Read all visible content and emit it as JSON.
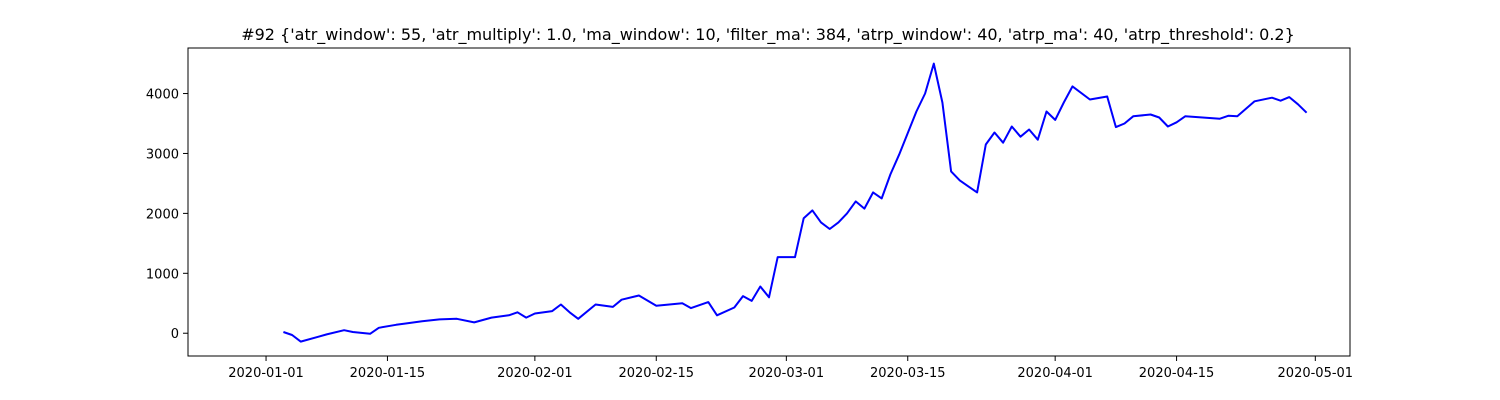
{
  "chart_data": {
    "type": "line",
    "title": "#92 {'atr_window': 55, 'atr_multiply': 1.0, 'ma_window': 10, 'filter_ma': 384, 'atrp_window': 40, 'atrp_ma': 40, 'atrp_threshold': 0.2}",
    "xlabel": "",
    "ylabel": "",
    "xlim": [
      "2019-12-23",
      "2020-05-05"
    ],
    "ylim": [
      -380,
      4760
    ],
    "grid": false,
    "x_ticks": [
      "2020-01-01",
      "2020-01-15",
      "2020-02-01",
      "2020-02-15",
      "2020-03-01",
      "2020-03-15",
      "2020-04-01",
      "2020-04-15",
      "2020-05-01"
    ],
    "y_ticks": [
      0,
      1000,
      2000,
      3000,
      4000
    ],
    "series": [
      {
        "color": "#0000ff",
        "x": [
          "2020-01-03",
          "2020-01-04",
          "2020-01-05",
          "2020-01-07",
          "2020-01-08",
          "2020-01-10",
          "2020-01-11",
          "2020-01-13",
          "2020-01-14",
          "2020-01-16",
          "2020-01-17",
          "2020-01-19",
          "2020-01-21",
          "2020-01-23",
          "2020-01-25",
          "2020-01-27",
          "2020-01-29",
          "2020-01-30",
          "2020-01-31",
          "2020-02-01",
          "2020-02-03",
          "2020-02-04",
          "2020-02-05",
          "2020-02-06",
          "2020-02-08",
          "2020-02-10",
          "2020-02-11",
          "2020-02-13",
          "2020-02-15",
          "2020-02-18",
          "2020-02-19",
          "2020-02-21",
          "2020-02-22",
          "2020-02-24",
          "2020-02-25",
          "2020-02-26",
          "2020-02-27",
          "2020-02-28",
          "2020-02-29",
          "2020-03-01",
          "2020-03-02",
          "2020-03-03",
          "2020-03-04",
          "2020-03-05",
          "2020-03-06",
          "2020-03-07",
          "2020-03-08",
          "2020-03-09",
          "2020-03-10",
          "2020-03-11",
          "2020-03-12",
          "2020-03-13",
          "2020-03-14",
          "2020-03-16",
          "2020-03-17",
          "2020-03-18",
          "2020-03-19",
          "2020-03-20",
          "2020-03-21",
          "2020-03-22",
          "2020-03-23",
          "2020-03-24",
          "2020-03-25",
          "2020-03-26",
          "2020-03-27",
          "2020-03-28",
          "2020-03-29",
          "2020-03-30",
          "2020-03-31",
          "2020-04-01",
          "2020-04-02",
          "2020-04-03",
          "2020-04-05",
          "2020-04-07",
          "2020-04-08",
          "2020-04-09",
          "2020-04-10",
          "2020-04-12",
          "2020-04-13",
          "2020-04-14",
          "2020-04-15",
          "2020-04-16",
          "2020-04-18",
          "2020-04-20",
          "2020-04-21",
          "2020-04-22",
          "2020-04-24",
          "2020-04-26",
          "2020-04-27",
          "2020-04-28",
          "2020-04-29",
          "2020-04-30"
        ],
        "y": [
          20,
          -30,
          -140,
          -60,
          -20,
          50,
          20,
          -10,
          90,
          140,
          160,
          200,
          230,
          240,
          180,
          260,
          300,
          350,
          260,
          330,
          370,
          480,
          350,
          240,
          480,
          440,
          560,
          630,
          460,
          500,
          420,
          520,
          300,
          430,
          620,
          540,
          780,
          600,
          1270,
          1270,
          1270,
          1920,
          2050,
          1850,
          1740,
          1850,
          2000,
          2200,
          2080,
          2350,
          2250,
          2650,
          2980,
          3700,
          4000,
          4500,
          3850,
          2700,
          2550,
          2450,
          2350,
          3150,
          3350,
          3180,
          3450,
          3280,
          3400,
          3230,
          3700,
          3560,
          3850,
          4120,
          3900,
          3950,
          3440,
          3500,
          3620,
          3650,
          3600,
          3450,
          3520,
          3620,
          3600,
          3580,
          3630,
          3620,
          3870,
          3930,
          3880,
          3940,
          3820,
          3680
        ]
      }
    ]
  }
}
